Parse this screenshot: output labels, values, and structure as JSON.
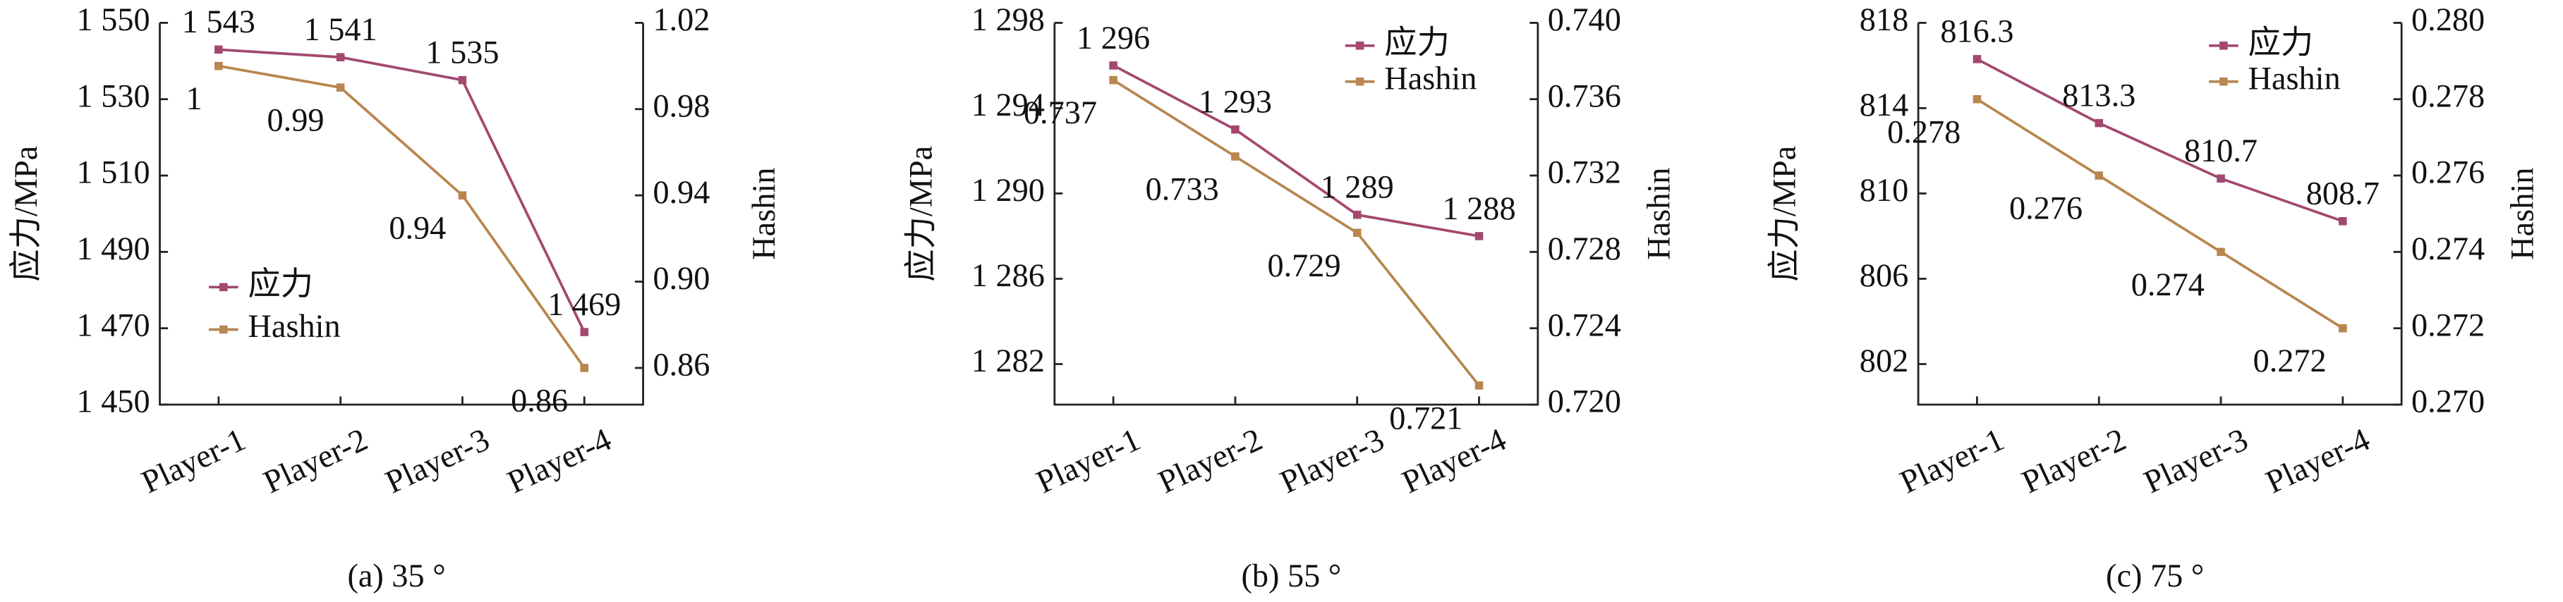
{
  "chart_data": [
    {
      "type": "line",
      "subtitle": "(a) 35 °",
      "y_label": "应力/MPa",
      "y2_label": "Hashin",
      "legend": "lower left",
      "categories": [
        "Player-1",
        "Player-2",
        "Player-3",
        "Player-4"
      ],
      "series": [
        {
          "name": "应力",
          "color": "#a3486f",
          "values": [
            1543,
            1541,
            1535,
            1469
          ],
          "value_labels": [
            "1 543",
            "1 541",
            "1 535",
            "1 469"
          ]
        },
        {
          "name": "Hashin",
          "color": "#b8864e",
          "axis": "y2",
          "values": [
            1,
            0.99,
            0.94,
            0.86
          ]
        }
      ],
      "ylim": [
        1450,
        1550
      ],
      "yticks": [
        {
          "value": 1450,
          "label": "1 450"
        },
        {
          "value": 1470,
          "label": "1 470"
        },
        {
          "value": 1490,
          "label": "1 490"
        },
        {
          "value": 1510,
          "label": "1 510"
        },
        {
          "value": 1530,
          "label": "1 530"
        },
        {
          "value": 1550,
          "label": "1 550"
        }
      ],
      "y2lim": [
        0.843,
        1.02
      ],
      "y2ticks": [
        0.86,
        {
          "value": 0.9,
          "label": "0.90"
        },
        0.94,
        0.98,
        1.02
      ]
    },
    {
      "type": "line",
      "subtitle": "(b) 55 °",
      "y_label": "应力/MPa",
      "y2_label": "Hashin",
      "legend": "upper right",
      "categories": [
        "Player-1",
        "Player-2",
        "Player-3",
        "Player-4"
      ],
      "series": [
        {
          "name": "应力",
          "color": "#a3486f",
          "values": [
            1296,
            1293,
            1289,
            1288
          ],
          "value_labels": [
            "1 296",
            "1 293",
            "1 289",
            "1 288"
          ]
        },
        {
          "name": "Hashin",
          "color": "#b8864e",
          "axis": "y2",
          "values": [
            0.737,
            0.733,
            0.729,
            0.721
          ]
        }
      ],
      "ylim": [
        1280.1,
        1298
      ],
      "yticks": [
        {
          "value": 1282,
          "label": "1 282"
        },
        {
          "value": 1286,
          "label": "1 286"
        },
        {
          "value": 1290,
          "label": "1 290"
        },
        {
          "value": 1294,
          "label": "1 294"
        },
        {
          "value": 1298,
          "label": "1 298"
        }
      ],
      "y2lim": [
        0.72,
        0.74
      ],
      "y2ticks": [
        {
          "value": 0.72,
          "label": "0.720"
        },
        0.724,
        0.728,
        0.732,
        0.736,
        {
          "value": 0.74,
          "label": "0.740"
        }
      ]
    },
    {
      "type": "line",
      "subtitle": "(c) 75 °",
      "y_label": "应力/MPa",
      "y2_label": "Hashin",
      "legend": "upper right",
      "categories": [
        "Player-1",
        "Player-2",
        "Player-3",
        "Player-4"
      ],
      "series": [
        {
          "name": "应力",
          "color": "#a3486f",
          "values": [
            816.3,
            813.3,
            810.7,
            808.7
          ]
        },
        {
          "name": "Hashin",
          "color": "#b8864e",
          "axis": "y2",
          "values": [
            0.278,
            0.276,
            0.274,
            0.272
          ]
        }
      ],
      "ylim": [
        800.1,
        818
      ],
      "yticks": [
        802,
        806,
        810,
        814,
        818
      ],
      "y2lim": [
        0.27,
        0.28
      ],
      "y2ticks": [
        {
          "value": 0.27,
          "label": "0.270"
        },
        0.272,
        0.274,
        0.276,
        0.278,
        {
          "value": 0.28,
          "label": "0.280"
        }
      ]
    }
  ]
}
